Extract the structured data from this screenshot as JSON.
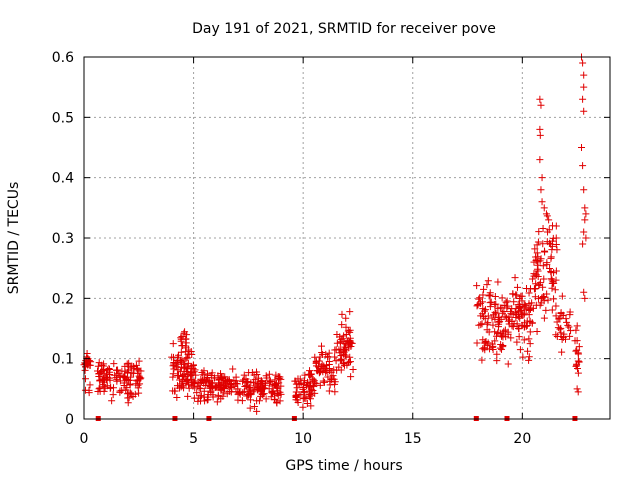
{
  "chart_data": {
    "type": "scatter",
    "title": "Day 191 of 2021, SRMTID for receiver pove",
    "xlabel": "GPS time / hours",
    "ylabel": "SRMTID / TECUs",
    "xlim": [
      0,
      24
    ],
    "ylim": [
      0,
      0.6
    ],
    "x_ticks": [
      0,
      5,
      10,
      15,
      20
    ],
    "x_tick_labels": [
      "0",
      "5",
      "10",
      "15",
      "20"
    ],
    "y_ticks": [
      0,
      0.1,
      0.2,
      0.3,
      0.4,
      0.5,
      0.6
    ],
    "y_tick_labels": [
      "0",
      "0.1",
      "0.2",
      "0.3",
      "0.4",
      "0.5",
      "0.6"
    ],
    "grid": true,
    "marker": "plus",
    "color": "#e00000",
    "clusters": [
      {
        "x_range": [
          0.0,
          0.3
        ],
        "y_center": 0.08,
        "y_spread": 0.035,
        "n": 25,
        "seed": 11
      },
      {
        "x_range": [
          0.6,
          2.6
        ],
        "y_center": 0.065,
        "y_spread": 0.025,
        "n": 120,
        "seed": 12
      },
      {
        "x_range": [
          4.0,
          5.0
        ],
        "y_center": 0.08,
        "y_spread": 0.03,
        "n": 80,
        "seed": 13
      },
      {
        "x_range": [
          4.4,
          4.8
        ],
        "y_center": 0.12,
        "y_spread": 0.025,
        "n": 20,
        "seed": 14
      },
      {
        "x_range": [
          5.0,
          7.0
        ],
        "y_center": 0.055,
        "y_spread": 0.02,
        "n": 120,
        "seed": 15
      },
      {
        "x_range": [
          7.0,
          9.0
        ],
        "y_center": 0.05,
        "y_spread": 0.022,
        "n": 120,
        "seed": 16
      },
      {
        "x_range": [
          9.6,
          10.5
        ],
        "y_center": 0.05,
        "y_spread": 0.025,
        "n": 60,
        "seed": 17
      },
      {
        "x_range": [
          10.5,
          11.5
        ],
        "y_center": 0.08,
        "y_spread": 0.03,
        "n": 60,
        "seed": 18
      },
      {
        "x_range": [
          11.5,
          12.3
        ],
        "y_center": 0.12,
        "y_spread": 0.045,
        "n": 60,
        "seed": 19
      },
      {
        "x_range": [
          17.9,
          19.5
        ],
        "y_center": 0.16,
        "y_spread": 0.045,
        "n": 110,
        "seed": 20
      },
      {
        "x_range": [
          19.5,
          20.5
        ],
        "y_center": 0.17,
        "y_spread": 0.05,
        "n": 80,
        "seed": 21
      },
      {
        "x_range": [
          20.5,
          21.6
        ],
        "y_center": 0.24,
        "y_spread": 0.08,
        "n": 90,
        "seed": 22
      },
      {
        "x_range": [
          21.6,
          22.2
        ],
        "y_center": 0.16,
        "y_spread": 0.04,
        "n": 25,
        "seed": 23
      },
      {
        "x_range": [
          22.4,
          22.6
        ],
        "y_center": 0.11,
        "y_spread": 0.04,
        "n": 15,
        "seed": 24
      }
    ],
    "points": [
      [
        20.8,
        0.53
      ],
      [
        20.85,
        0.52
      ],
      [
        20.8,
        0.48
      ],
      [
        20.82,
        0.47
      ],
      [
        20.8,
        0.43
      ],
      [
        20.9,
        0.4
      ],
      [
        20.85,
        0.38
      ],
      [
        21.0,
        0.35
      ],
      [
        21.1,
        0.34
      ],
      [
        21.2,
        0.33
      ],
      [
        21.15,
        0.31
      ],
      [
        20.9,
        0.36
      ],
      [
        22.7,
        0.6
      ],
      [
        22.75,
        0.59
      ],
      [
        22.8,
        0.57
      ],
      [
        22.8,
        0.55
      ],
      [
        22.75,
        0.53
      ],
      [
        22.8,
        0.51
      ],
      [
        22.7,
        0.45
      ],
      [
        22.75,
        0.42
      ],
      [
        22.8,
        0.38
      ],
      [
        22.85,
        0.35
      ],
      [
        22.9,
        0.34
      ],
      [
        22.85,
        0.33
      ],
      [
        22.8,
        0.31
      ],
      [
        22.9,
        0.3
      ],
      [
        22.75,
        0.29
      ],
      [
        22.8,
        0.21
      ],
      [
        22.85,
        0.2
      ],
      [
        22.5,
        0.05
      ],
      [
        22.55,
        0.045
      ],
      [
        22.5,
        0.13
      ],
      [
        22.6,
        0.12
      ]
    ],
    "gap_markers_x": [
      0.65,
      4.15,
      5.7,
      9.6,
      17.9,
      19.3,
      22.4
    ]
  }
}
